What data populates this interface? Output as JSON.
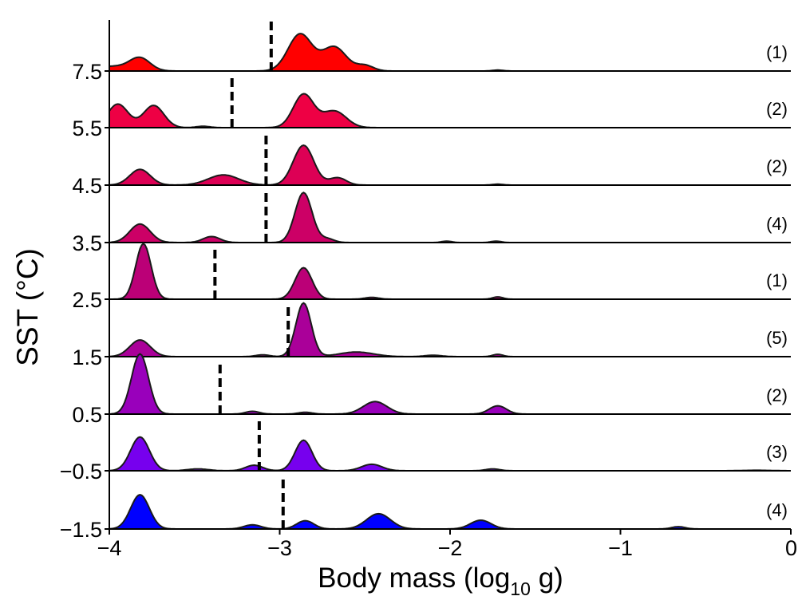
{
  "chart_data": {
    "type": "ridgeline",
    "xlabel_main": "Body mass (log",
    "xlabel_sub": "10",
    "xlabel_end": " g)",
    "ylabel": "SST (°C)",
    "x_ticks": [
      -4,
      -3,
      -2,
      -1,
      0
    ],
    "x_tick_labels": [
      "−4",
      "−3",
      "−2",
      "−1",
      "0"
    ],
    "xlim": [
      -4,
      0
    ],
    "ylim": [
      -1.5,
      7.5
    ],
    "ridges": [
      {
        "sst_label": "7.5",
        "count": "(1)",
        "color": "#ff0000",
        "mean": -3.05,
        "peaks": [
          [
            -3.82,
            0.06,
            0.27
          ],
          [
            -2.88,
            0.07,
            0.8
          ],
          [
            -2.68,
            0.07,
            0.52
          ],
          [
            -3.98,
            0.1,
            0.1
          ],
          [
            -2.5,
            0.05,
            0.12
          ],
          [
            -1.72,
            0.03,
            0.02
          ]
        ]
      },
      {
        "sst_label": "5.5",
        "count": "(2)",
        "color": "#ee0044",
        "mean": -3.28,
        "peaks": [
          [
            -3.95,
            0.06,
            0.51
          ],
          [
            -3.74,
            0.06,
            0.48
          ],
          [
            -2.86,
            0.06,
            0.72
          ],
          [
            -2.68,
            0.07,
            0.36
          ],
          [
            -3.45,
            0.04,
            0.03
          ]
        ]
      },
      {
        "sst_label": "4.5",
        "count": "(2)",
        "color": "#dd0055",
        "mean": -3.08,
        "peaks": [
          [
            -3.82,
            0.06,
            0.34
          ],
          [
            -3.33,
            0.09,
            0.22
          ],
          [
            -2.86,
            0.06,
            0.86
          ],
          [
            -2.66,
            0.05,
            0.16
          ],
          [
            -1.72,
            0.03,
            0.02
          ]
        ]
      },
      {
        "sst_label": "3.5",
        "count": "(4)",
        "color": "#cc0066",
        "mean": -3.08,
        "peaks": [
          [
            -3.82,
            0.06,
            0.4
          ],
          [
            -3.4,
            0.05,
            0.13
          ],
          [
            -2.86,
            0.05,
            1.08
          ],
          [
            -2.72,
            0.04,
            0.08
          ],
          [
            -2.02,
            0.03,
            0.03
          ],
          [
            -1.73,
            0.03,
            0.03
          ]
        ]
      },
      {
        "sst_label": "2.5",
        "count": "(1)",
        "color": "#bb0077",
        "mean": -3.38,
        "peaks": [
          [
            -3.8,
            0.045,
            1.2
          ],
          [
            -2.86,
            0.05,
            0.68
          ],
          [
            -2.46,
            0.04,
            0.04
          ],
          [
            -1.72,
            0.03,
            0.05
          ]
        ]
      },
      {
        "sst_label": "1.5",
        "count": "(5)",
        "color": "#aa0099",
        "mean": -2.95,
        "peaks": [
          [
            -3.82,
            0.06,
            0.36
          ],
          [
            -3.1,
            0.04,
            0.04
          ],
          [
            -2.86,
            0.045,
            1.16
          ],
          [
            -2.55,
            0.1,
            0.1
          ],
          [
            -2.1,
            0.05,
            0.03
          ],
          [
            -1.72,
            0.03,
            0.05
          ]
        ]
      },
      {
        "sst_label": "0.5",
        "count": "(2)",
        "color": "#9900bb",
        "mean": -3.35,
        "peaks": [
          [
            -3.82,
            0.05,
            1.3
          ],
          [
            -3.16,
            0.04,
            0.06
          ],
          [
            -2.85,
            0.04,
            0.04
          ],
          [
            -2.44,
            0.07,
            0.27
          ],
          [
            -1.72,
            0.05,
            0.18
          ]
        ]
      },
      {
        "sst_label": "−0.5",
        "count": "(3)",
        "color": "#7700ee",
        "mean": -3.12,
        "peaks": [
          [
            -3.82,
            0.055,
            0.73
          ],
          [
            -3.48,
            0.06,
            0.04
          ],
          [
            -3.15,
            0.05,
            0.12
          ],
          [
            -2.86,
            0.05,
            0.66
          ],
          [
            -2.46,
            0.06,
            0.14
          ],
          [
            -1.75,
            0.04,
            0.04
          ],
          [
            -0.2,
            0.08,
            0.01
          ]
        ]
      },
      {
        "sst_label": "−1.5",
        "count": "(4)",
        "color": "#0000ff",
        "mean": -2.98,
        "peaks": [
          [
            -3.82,
            0.055,
            0.74
          ],
          [
            -3.16,
            0.05,
            0.09
          ],
          [
            -2.85,
            0.05,
            0.18
          ],
          [
            -2.42,
            0.07,
            0.33
          ],
          [
            -1.82,
            0.06,
            0.19
          ],
          [
            -0.66,
            0.04,
            0.05
          ]
        ]
      }
    ]
  }
}
